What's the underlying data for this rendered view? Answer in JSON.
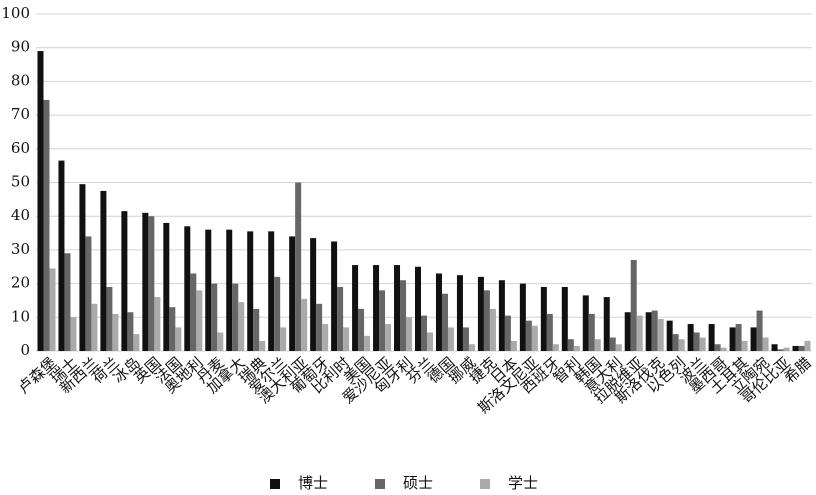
{
  "chart_data": {
    "type": "bar",
    "categories": [
      "卢森堡",
      "瑞士",
      "新西兰",
      "荷兰",
      "冰岛",
      "英国",
      "法国",
      "奥地利",
      "丹麦",
      "加拿大",
      "瑞典",
      "爱尔兰",
      "澳大利亚",
      "葡萄牙",
      "比利时",
      "美国",
      "爱沙尼亚",
      "匈牙利",
      "芬兰",
      "德国",
      "挪威",
      "捷克",
      "日本",
      "斯洛文尼亚",
      "西班牙",
      "智利",
      "韩国",
      "意大利",
      "拉脱维亚",
      "斯洛伐克",
      "以色列",
      "波兰",
      "墨西哥",
      "土耳其",
      "立陶宛",
      "哥伦比亚",
      "希腊"
    ],
    "series": [
      {
        "name": "博士",
        "color": "#111111",
        "values": [
          89,
          56.5,
          49.5,
          47.5,
          41.5,
          41,
          38,
          37,
          36,
          36,
          35.5,
          35.5,
          34,
          33.5,
          32.5,
          25.5,
          25.5,
          25.5,
          25,
          23,
          22.5,
          22,
          21,
          20,
          19,
          19,
          16.5,
          16,
          11.5,
          11.5,
          9,
          8,
          8,
          7,
          7,
          2,
          1.5
        ]
      },
      {
        "name": "硕士",
        "color": "#666666",
        "values": [
          74.5,
          29,
          34,
          19,
          11.5,
          40,
          13,
          23,
          20,
          20,
          12.5,
          22,
          50,
          14,
          19,
          12.5,
          18,
          21,
          10.5,
          17,
          7,
          18,
          10.5,
          9,
          11,
          3.5,
          11,
          4,
          27,
          12,
          5,
          5.5,
          2,
          8,
          12,
          0.5,
          1.5
        ]
      },
      {
        "name": "学士",
        "color": "#aaaaaa",
        "values": [
          24.5,
          10,
          14,
          11,
          5,
          16,
          7,
          18,
          5.5,
          14.5,
          3,
          7,
          15.5,
          8,
          7,
          4.5,
          8,
          10,
          5.5,
          7,
          2,
          12.5,
          3,
          7.5,
          2,
          1.5,
          3.5,
          2,
          10.5,
          9.5,
          3.5,
          4,
          1,
          3,
          4,
          1,
          3
        ]
      }
    ],
    "ylim": [
      0,
      100
    ],
    "yticks": [
      0,
      10,
      20,
      30,
      40,
      50,
      60,
      70,
      80,
      90,
      100
    ],
    "grid": true
  }
}
